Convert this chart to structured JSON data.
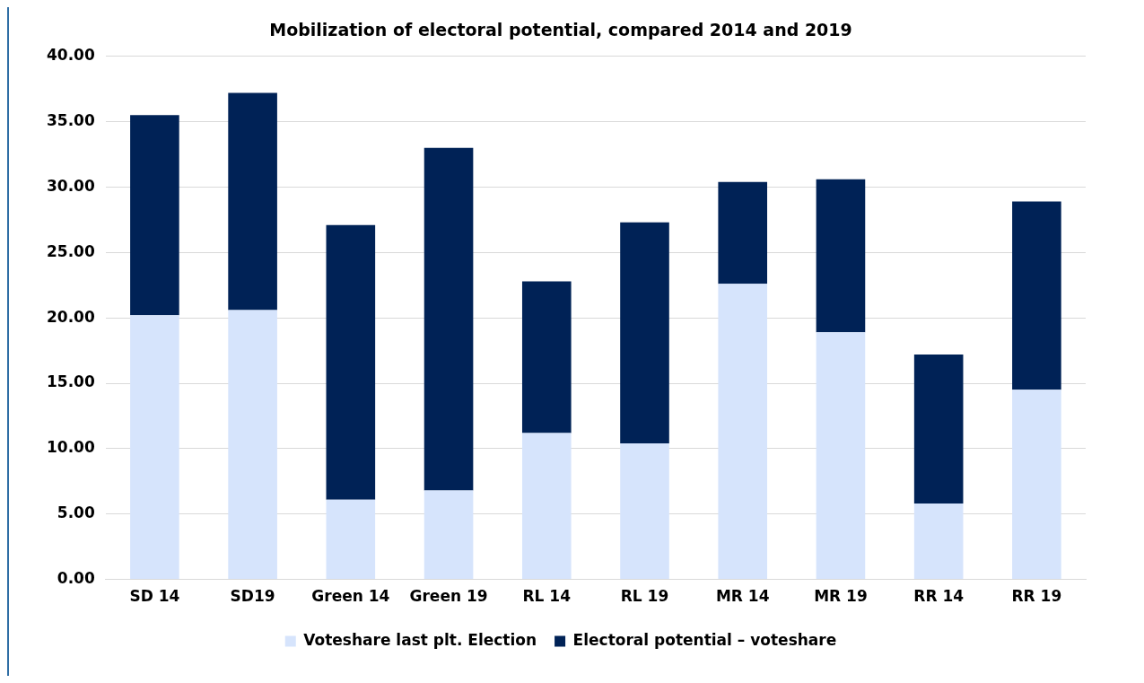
{
  "chart_data": {
    "type": "bar",
    "title": "Mobilization of electoral potential, compared 2014 and 2019",
    "categories": [
      "SD 14",
      "SD19",
      "Green 14",
      "Green 19",
      "RL 14",
      "RL 19",
      "MR 14",
      "MR 19",
      "RR 14",
      "RR 19"
    ],
    "stacked": true,
    "series": [
      {
        "name": "Voteshare last plt. Election",
        "color": "#d6e4fc",
        "values": [
          20.2,
          20.6,
          6.1,
          6.8,
          11.2,
          10.4,
          22.6,
          18.9,
          5.8,
          14.5
        ]
      },
      {
        "name": "Electoral potential – voteshare",
        "color": "#002256",
        "values": [
          15.3,
          16.6,
          21.0,
          26.2,
          11.6,
          16.9,
          7.8,
          11.7,
          11.4,
          14.4
        ]
      }
    ],
    "ylim": [
      0,
      40
    ],
    "yticks": [
      {
        "value": 0,
        "label": "0.00"
      },
      {
        "value": 5,
        "label": "5.00"
      },
      {
        "value": 10,
        "label": "10.00"
      },
      {
        "value": 15,
        "label": "15.00"
      },
      {
        "value": 20,
        "label": "20.00"
      },
      {
        "value": 25,
        "label": "25.00"
      },
      {
        "value": 30,
        "label": "30.00"
      },
      {
        "value": 35,
        "label": "35.00"
      },
      {
        "value": 40,
        "label": "40.00"
      }
    ],
    "grid": "y",
    "legend": "bottom"
  }
}
